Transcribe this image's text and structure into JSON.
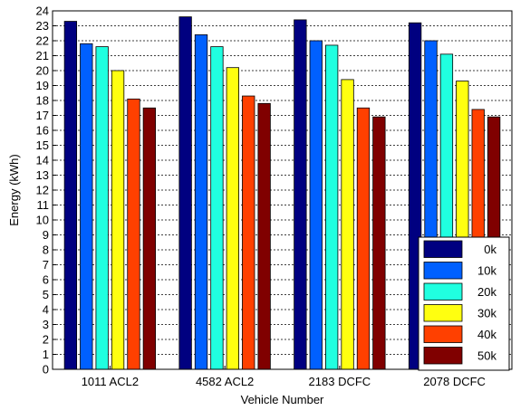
{
  "chart_data": {
    "type": "bar",
    "xlabel": "Vehicle Number",
    "ylabel": "Energy (kWh)",
    "ylim": [
      0,
      24
    ],
    "yticks": [
      0,
      1,
      2,
      3,
      4,
      5,
      6,
      7,
      8,
      9,
      10,
      11,
      12,
      13,
      14,
      15,
      16,
      17,
      18,
      19,
      20,
      21,
      22,
      23,
      24
    ],
    "grid": "horizontal dotted",
    "legend_position": "bottom-right",
    "categories": [
      "1011 ACL2",
      "4582 ACL2",
      "2183 DCFC",
      "2078 DCFC"
    ],
    "series": [
      {
        "name": "0k",
        "color": "#000080",
        "values": [
          23.3,
          23.6,
          23.4,
          23.2
        ]
      },
      {
        "name": "10k",
        "color": "#0060ff",
        "values": [
          21.8,
          22.4,
          22.0,
          22.0
        ]
      },
      {
        "name": "20k",
        "color": "#20ffe0",
        "values": [
          21.6,
          21.6,
          21.7,
          21.1
        ]
      },
      {
        "name": "30k",
        "color": "#ffff10",
        "values": [
          20.0,
          20.2,
          19.4,
          19.3
        ]
      },
      {
        "name": "40k",
        "color": "#ff4000",
        "values": [
          18.1,
          18.3,
          17.5,
          17.4
        ]
      },
      {
        "name": "50k",
        "color": "#800000",
        "values": [
          17.5,
          17.8,
          16.9,
          16.9
        ]
      }
    ]
  }
}
